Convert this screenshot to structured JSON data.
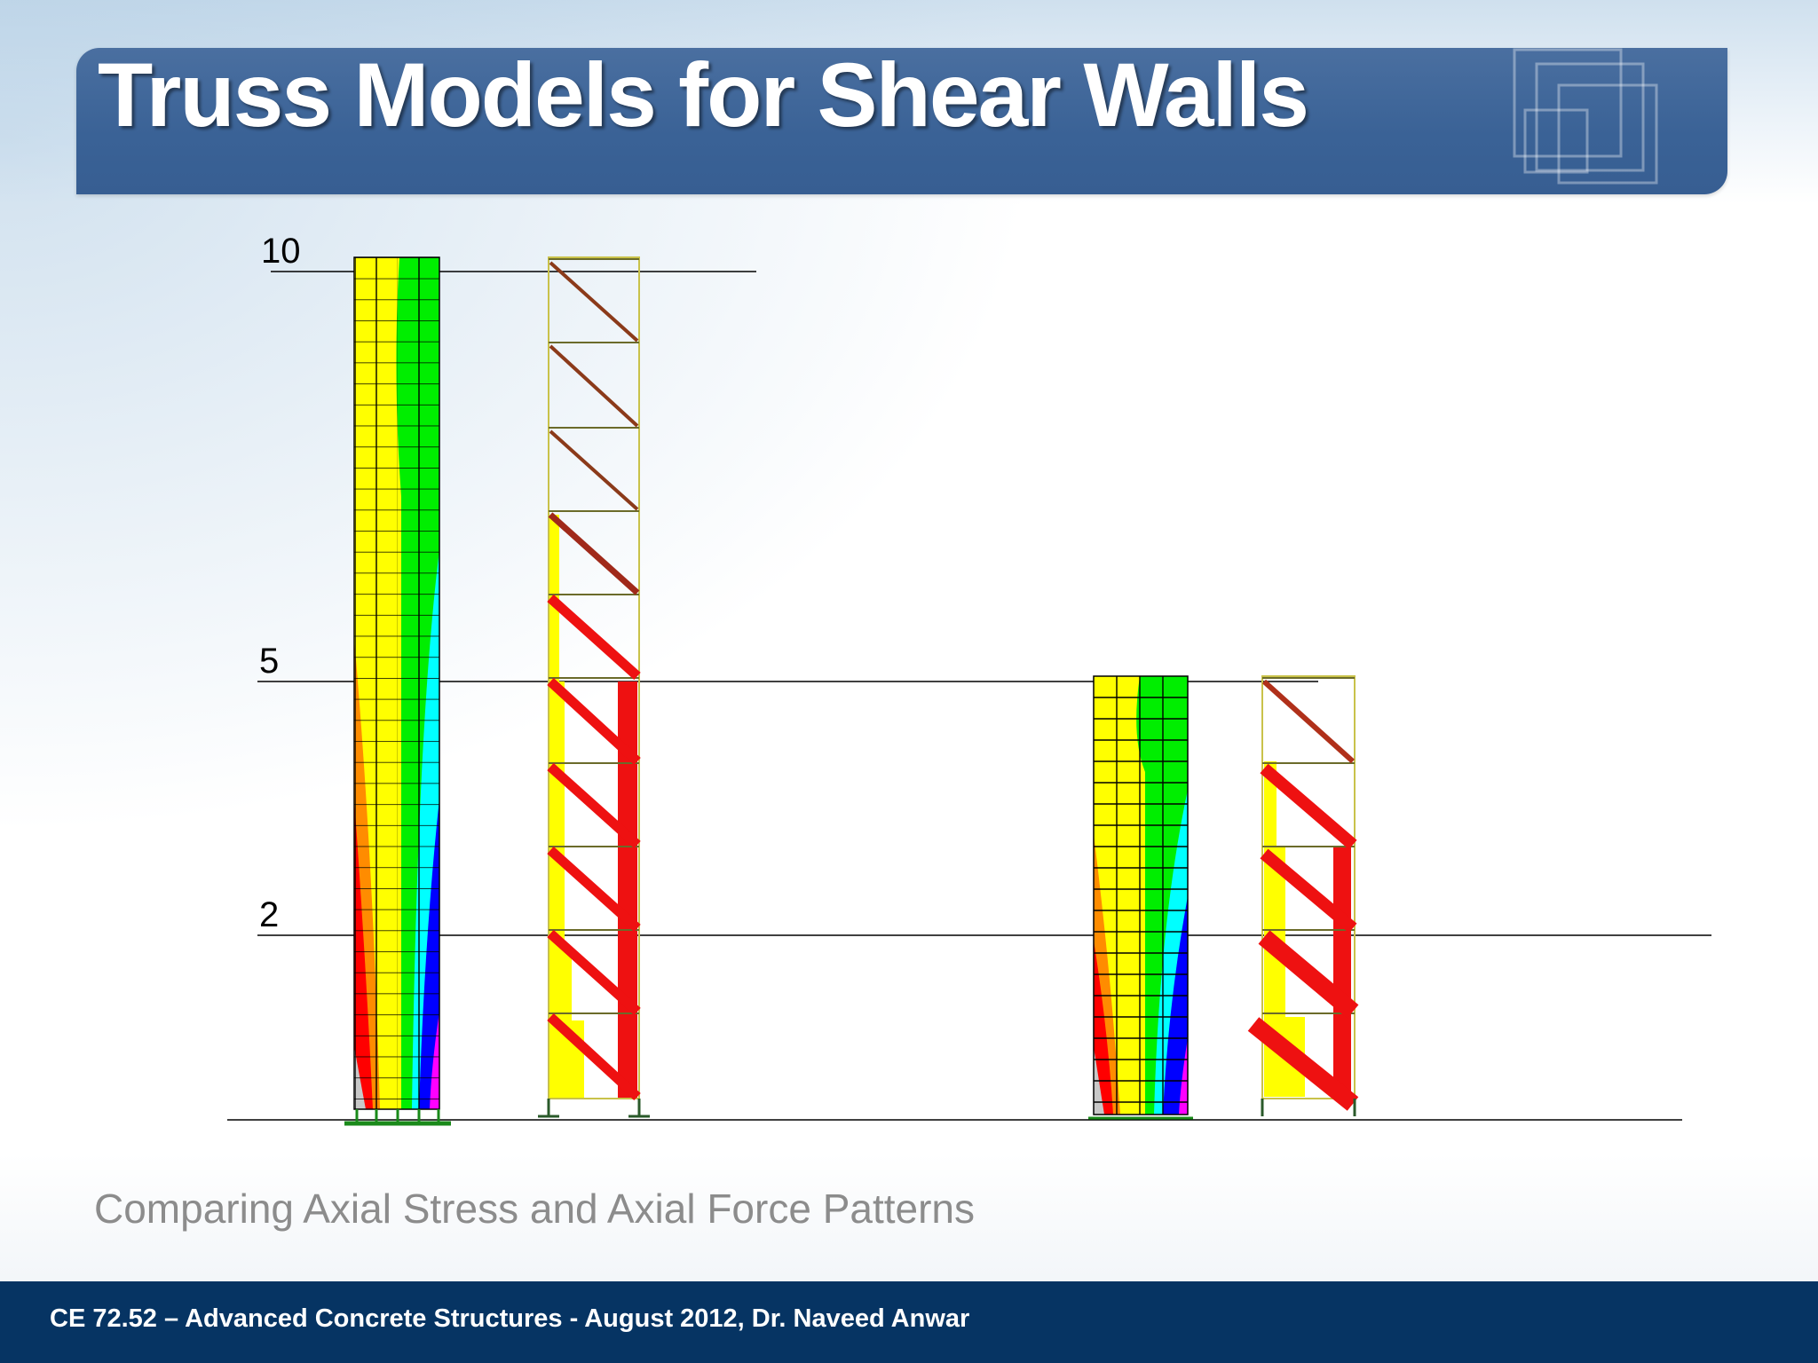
{
  "slide": {
    "title": "Truss Models for Shear Walls",
    "subtitle": "Comparing Axial Stress and Axial Force Patterns",
    "footer": "CE 72.52 – Advanced Concrete Structures - August 2012,  Dr. Naveed Anwar"
  },
  "figure": {
    "level_labels": [
      "10",
      "5",
      "2"
    ]
  },
  "colors": {
    "title_bar": "#3a6296",
    "footer_bar": "#063463",
    "stress_yellow": "#ffff00",
    "stress_green": "#00ee00",
    "stress_cyan": "#00ffff",
    "stress_blue": "#0000ff",
    "stress_magenta": "#ff00ff",
    "stress_red": "#ff0000",
    "stress_orange": "#ff8c00",
    "truss_red": "#ee1111",
    "truss_brown": "#8b3a1a"
  }
}
